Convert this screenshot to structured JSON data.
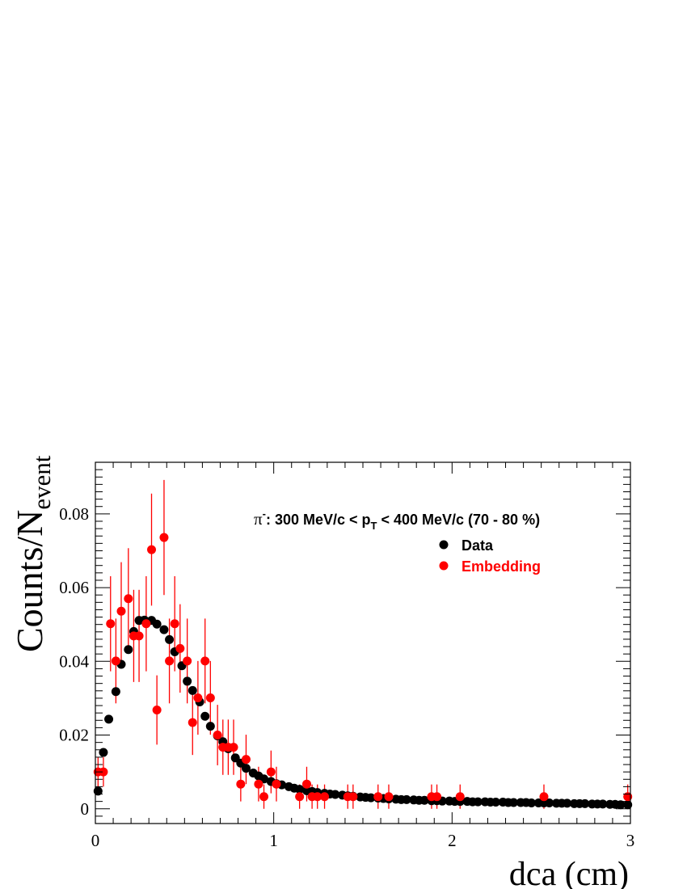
{
  "chart_data": {
    "type": "scatter",
    "title": "",
    "xlabel": "dca (cm)",
    "ylabel": {
      "main": "Counts/N",
      "subscript": "event"
    },
    "xlim": [
      0,
      3
    ],
    "ylim": [
      -0.004,
      0.094
    ],
    "x_ticks": [
      0,
      1,
      2,
      3
    ],
    "x_tick_labels": [
      "0",
      "1",
      "2",
      "3"
    ],
    "y_ticks": [
      0,
      0.02,
      0.04,
      0.06,
      0.08
    ],
    "y_tick_labels": [
      "0",
      "0.02",
      "0.04",
      "0.06",
      "0.08"
    ],
    "grid": false,
    "annotation": {
      "particle": "π",
      "charge": "-",
      "pre": ": 300 MeV/c < p",
      "sub": "T",
      "post": " < 400 MeV/c (70 - 80 %)"
    },
    "legend_position": "top-right",
    "series": [
      {
        "name": "Data",
        "color": "#000000",
        "points": [
          [
            0.015,
            0.0048
          ],
          [
            0.045,
            0.0153
          ],
          [
            0.075,
            0.0243
          ],
          [
            0.115,
            0.0318
          ],
          [
            0.145,
            0.0392
          ],
          [
            0.185,
            0.0432
          ],
          [
            0.215,
            0.0481
          ],
          [
            0.245,
            0.0511
          ],
          [
            0.275,
            0.0512
          ],
          [
            0.315,
            0.0511
          ],
          [
            0.345,
            0.0501
          ],
          [
            0.385,
            0.0486
          ],
          [
            0.415,
            0.0459
          ],
          [
            0.445,
            0.0426
          ],
          [
            0.485,
            0.0388
          ],
          [
            0.515,
            0.0346
          ],
          [
            0.545,
            0.0321
          ],
          [
            0.585,
            0.029
          ],
          [
            0.615,
            0.0251
          ],
          [
            0.645,
            0.0224
          ],
          [
            0.685,
            0.0198
          ],
          [
            0.715,
            0.0182
          ],
          [
            0.745,
            0.0163
          ],
          [
            0.785,
            0.0138
          ],
          [
            0.815,
            0.0124
          ],
          [
            0.845,
            0.011
          ],
          [
            0.885,
            0.0097
          ],
          [
            0.915,
            0.0089
          ],
          [
            0.945,
            0.0081
          ],
          [
            0.985,
            0.0074
          ],
          [
            1.015,
            0.0068
          ],
          [
            1.045,
            0.0065
          ],
          [
            1.085,
            0.006
          ],
          [
            1.115,
            0.0056
          ],
          [
            1.145,
            0.0053
          ],
          [
            1.185,
            0.0049
          ],
          [
            1.215,
            0.0047
          ],
          [
            1.245,
            0.0044
          ],
          [
            1.285,
            0.0042
          ],
          [
            1.315,
            0.004
          ],
          [
            1.345,
            0.0039
          ],
          [
            1.385,
            0.0037
          ],
          [
            1.415,
            0.0035
          ],
          [
            1.445,
            0.0034
          ],
          [
            1.485,
            0.0032
          ],
          [
            1.515,
            0.0031
          ],
          [
            1.545,
            0.003
          ],
          [
            1.585,
            0.0029
          ],
          [
            1.615,
            0.0028
          ],
          [
            1.645,
            0.0027
          ],
          [
            1.685,
            0.0026
          ],
          [
            1.715,
            0.0025
          ],
          [
            1.745,
            0.0025
          ],
          [
            1.785,
            0.0024
          ],
          [
            1.815,
            0.0023
          ],
          [
            1.845,
            0.0023
          ],
          [
            1.885,
            0.0022
          ],
          [
            1.915,
            0.0022
          ],
          [
            1.945,
            0.0021
          ],
          [
            1.985,
            0.0021
          ],
          [
            2.015,
            0.002
          ],
          [
            2.045,
            0.002
          ],
          [
            2.085,
            0.002
          ],
          [
            2.115,
            0.0019
          ],
          [
            2.145,
            0.0019
          ],
          [
            2.185,
            0.0019
          ],
          [
            2.215,
            0.0018
          ],
          [
            2.245,
            0.0018
          ],
          [
            2.285,
            0.0018
          ],
          [
            2.315,
            0.0017
          ],
          [
            2.345,
            0.0017
          ],
          [
            2.385,
            0.0017
          ],
          [
            2.415,
            0.0017
          ],
          [
            2.445,
            0.0016
          ],
          [
            2.485,
            0.0016
          ],
          [
            2.515,
            0.0016
          ],
          [
            2.545,
            0.0016
          ],
          [
            2.585,
            0.0015
          ],
          [
            2.615,
            0.0015
          ],
          [
            2.645,
            0.0015
          ],
          [
            2.685,
            0.0014
          ],
          [
            2.715,
            0.0014
          ],
          [
            2.745,
            0.0014
          ],
          [
            2.785,
            0.0013
          ],
          [
            2.815,
            0.0013
          ],
          [
            2.845,
            0.0013
          ],
          [
            2.885,
            0.0012
          ],
          [
            2.915,
            0.0012
          ],
          [
            2.945,
            0.0011
          ],
          [
            2.985,
            0.0011
          ]
        ]
      },
      {
        "name": "Embedding",
        "color": "#ff0000",
        "points": [
          [
            0.015,
            0.01,
            0.004
          ],
          [
            0.045,
            0.01,
            0.004
          ],
          [
            0.085,
            0.0502,
            0.0129
          ],
          [
            0.115,
            0.0401,
            0.0115
          ],
          [
            0.145,
            0.0536,
            0.0133
          ],
          [
            0.185,
            0.057,
            0.0137
          ],
          [
            0.215,
            0.0469,
            0.0125
          ],
          [
            0.245,
            0.0469,
            0.0125
          ],
          [
            0.285,
            0.0502,
            0.0129
          ],
          [
            0.315,
            0.0703,
            0.0152
          ],
          [
            0.345,
            0.0268,
            0.0094
          ],
          [
            0.385,
            0.0736,
            0.0156
          ],
          [
            0.415,
            0.0401,
            0.0115
          ],
          [
            0.445,
            0.0502,
            0.0129
          ],
          [
            0.475,
            0.0435,
            0.012
          ],
          [
            0.515,
            0.0401,
            0.0115
          ],
          [
            0.545,
            0.0234,
            0.0088
          ],
          [
            0.575,
            0.0301,
            0.01
          ],
          [
            0.615,
            0.0401,
            0.0115
          ],
          [
            0.645,
            0.0301,
            0.01
          ],
          [
            0.685,
            0.02,
            0.0082
          ],
          [
            0.715,
            0.0167,
            0.0075
          ],
          [
            0.745,
            0.0167,
            0.0075
          ],
          [
            0.775,
            0.0167,
            0.0075
          ],
          [
            0.815,
            0.0067,
            0.0047
          ],
          [
            0.845,
            0.0134,
            0.0067
          ],
          [
            0.915,
            0.0067,
            0.0047
          ],
          [
            0.945,
            0.0033,
            0.0033
          ],
          [
            0.985,
            0.01,
            0.0058
          ],
          [
            1.015,
            0.0067,
            0.0047
          ],
          [
            1.145,
            0.0033,
            0.0033
          ],
          [
            1.185,
            0.0067,
            0.0047
          ],
          [
            1.215,
            0.0033,
            0.0033
          ],
          [
            1.245,
            0.0033,
            0.0033
          ],
          [
            1.285,
            0.0033,
            0.0033
          ],
          [
            1.415,
            0.0033,
            0.0033
          ],
          [
            1.445,
            0.0033,
            0.0033
          ],
          [
            1.585,
            0.0033,
            0.0033
          ],
          [
            1.645,
            0.0033,
            0.0033
          ],
          [
            1.885,
            0.0033,
            0.0033
          ],
          [
            1.915,
            0.0033,
            0.0033
          ],
          [
            2.045,
            0.0033,
            0.0033
          ],
          [
            2.515,
            0.0033,
            0.0033
          ],
          [
            2.985,
            0.0033,
            0.0033
          ]
        ]
      }
    ]
  }
}
